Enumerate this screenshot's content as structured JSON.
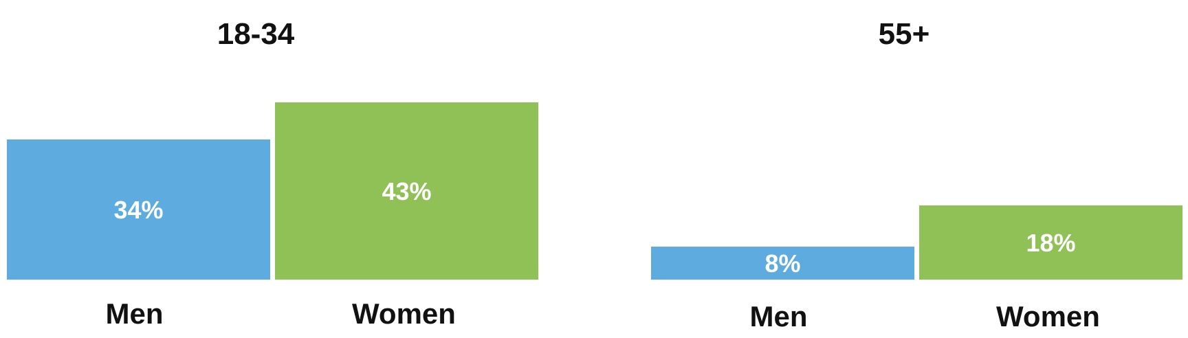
{
  "chart_data": [
    {
      "type": "bar",
      "title": "18-34",
      "categories": [
        "Men",
        "Women"
      ],
      "values": [
        34,
        43
      ],
      "value_labels": [
        "34%",
        "43%"
      ],
      "colors": [
        "#5dabdf",
        "#90c156"
      ],
      "ylim": [
        0,
        43
      ]
    },
    {
      "type": "bar",
      "title": "55+",
      "categories": [
        "Men",
        "Women"
      ],
      "values": [
        8,
        18
      ],
      "value_labels": [
        "8%",
        "18%"
      ],
      "colors": [
        "#5dabdf",
        "#90c156"
      ],
      "ylim": [
        0,
        43
      ]
    }
  ]
}
